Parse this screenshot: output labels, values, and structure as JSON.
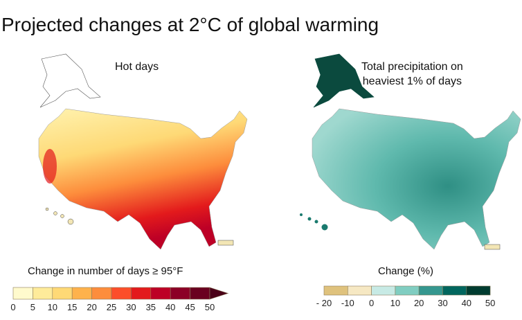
{
  "title": "Projected changes at 2°C of global warming",
  "left_map": {
    "title": "Hot days",
    "legend_label": "Change in number of days ≥ 95°F",
    "ticks": [
      "0",
      "5",
      "10",
      "15",
      "20",
      "25",
      "30",
      "35",
      "40",
      "45",
      "50"
    ],
    "colors": [
      "#fffacd",
      "#feeb9a",
      "#fed976",
      "#feb24c",
      "#fd8d3c",
      "#fc4e2a",
      "#e31a1c",
      "#bd0026",
      "#8c0026",
      "#6a0020",
      "#4a0018"
    ],
    "extend": "max-arrow"
  },
  "right_map": {
    "title_lines": [
      "Total precipitation on",
      "heaviest 1% of days"
    ],
    "legend_label": "Change (%)",
    "ticks": [
      "- 20",
      "-10",
      "0",
      "10",
      "20",
      "30",
      "40",
      "50"
    ],
    "colors": [
      "#dfc27d",
      "#f6e8c3",
      "#c7eae5",
      "#80cdc1",
      "#35978f",
      "#01665e",
      "#003c30"
    ]
  }
}
